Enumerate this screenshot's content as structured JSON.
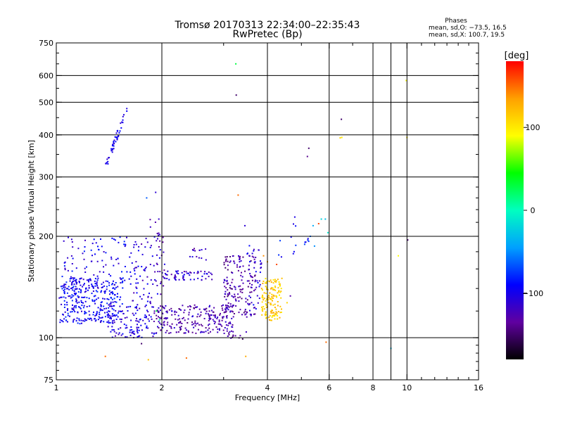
{
  "chart_data": {
    "type": "scatter",
    "title": "Tromsø 20170313 22:34:00–22:35:43",
    "subtitle": "RwPretec (Bp)",
    "xlabel": "Frequency [MHz]",
    "ylabel": "Stationary phase Virtual Height [km]",
    "x_scale": "log",
    "y_scale": "log",
    "xlim": [
      1,
      16
    ],
    "ylim": [
      75,
      750
    ],
    "x_ticks": [
      1,
      2,
      4,
      6,
      8,
      10,
      16
    ],
    "x_minor_gridlines": [
      9
    ],
    "y_ticks": [
      75,
      100,
      200,
      300,
      400,
      500,
      600,
      750
    ],
    "grid": true,
    "stats": {
      "heading": "Phases",
      "line_o": "mean, sd,O: −73.5, 16.5",
      "line_x": "mean, sd,X: 100.7, 19.5"
    },
    "colorbar": {
      "label": "[deg]",
      "range": [
        -180,
        180
      ],
      "ticks": [
        100,
        0,
        -100
      ],
      "colors": [
        "#000000",
        "#6000a0",
        "#0000ff",
        "#00a0ff",
        "#00ffc0",
        "#00ff00",
        "#ffff00",
        "#ffa000",
        "#ff0000"
      ]
    },
    "clusters": [
      {
        "x": [
          1.02,
          1.55
        ],
        "y": [
          110,
          150
        ],
        "n": 320,
        "phase": -95
      },
      {
        "x": [
          1.05,
          1.7
        ],
        "y": [
          140,
          200
        ],
        "n": 120,
        "phase": -100
      },
      {
        "x": [
          1.4,
          1.9
        ],
        "y": [
          100,
          125
        ],
        "n": 110,
        "phase": -105
      },
      {
        "x": [
          1.65,
          1.95
        ],
        "y": [
          120,
          200
        ],
        "n": 60,
        "phase": -110
      },
      {
        "x": [
          1.9,
          3.2
        ],
        "y": [
          103,
          125
        ],
        "n": 240,
        "phase": -125
      },
      {
        "x": [
          2.0,
          2.8
        ],
        "y": [
          148,
          158
        ],
        "n": 60,
        "phase": -115
      },
      {
        "x": [
          3.0,
          3.7
        ],
        "y": [
          115,
          175
        ],
        "n": 160,
        "phase": -130
      },
      {
        "x": [
          3.5,
          3.85
        ],
        "y": [
          120,
          190
        ],
        "n": 40,
        "phase": -105
      },
      {
        "x": [
          3.85,
          4.4
        ],
        "y": [
          112,
          150
        ],
        "n": 140,
        "phase": 115
      },
      {
        "x": [
          1.95,
          2.05
        ],
        "y": [
          105,
          210
        ],
        "n": 24,
        "phase": -120
      },
      {
        "x": [
          1.85,
          1.98
        ],
        "y": [
          140,
          230
        ],
        "n": 16,
        "phase": -115
      },
      {
        "x": [
          2.4,
          2.75
        ],
        "y": [
          170,
          185
        ],
        "n": 14,
        "phase": -120
      },
      {
        "x": [
          3.05,
          3.4
        ],
        "y": [
          99,
          103
        ],
        "n": 10,
        "phase": -140
      },
      {
        "x": [
          4.3,
          5.3
        ],
        "y": [
          165,
          235
        ],
        "n": 16,
        "phase": -85
      }
    ],
    "arc": {
      "x": [
        1.38,
        1.6
      ],
      "y": [
        320,
        485
      ],
      "n": 50,
      "phase": -100
    },
    "points": [
      {
        "x": 1.04,
        "y": 152,
        "phase": -80
      },
      {
        "x": 1.05,
        "y": 132,
        "phase": -75
      },
      {
        "x": 1.08,
        "y": 118,
        "phase": -70
      },
      {
        "x": 1.12,
        "y": 142,
        "phase": -65
      },
      {
        "x": 1.38,
        "y": 88,
        "phase": 150
      },
      {
        "x": 1.75,
        "y": 96,
        "phase": -150
      },
      {
        "x": 1.83,
        "y": 86,
        "phase": 120
      },
      {
        "x": 2.35,
        "y": 87,
        "phase": 150
      },
      {
        "x": 3.25,
        "y": 650,
        "phase": 30
      },
      {
        "x": 3.26,
        "y": 525,
        "phase": -150
      },
      {
        "x": 3.3,
        "y": 265,
        "phase": 150
      },
      {
        "x": 3.47,
        "y": 88,
        "phase": 130
      },
      {
        "x": 3.48,
        "y": 104,
        "phase": -120
      },
      {
        "x": 1.92,
        "y": 270,
        "phase": -110
      },
      {
        "x": 1.81,
        "y": 260,
        "phase": -65
      },
      {
        "x": 1.93,
        "y": 120,
        "phase": 35
      },
      {
        "x": 1.97,
        "y": 113,
        "phase": 10
      },
      {
        "x": 3.45,
        "y": 215,
        "phase": -110
      },
      {
        "x": 5.25,
        "y": 365,
        "phase": -150
      },
      {
        "x": 5.2,
        "y": 345,
        "phase": -140
      },
      {
        "x": 5.7,
        "y": 225,
        "phase": -20
      },
      {
        "x": 5.85,
        "y": 225,
        "phase": -30
      },
      {
        "x": 5.4,
        "y": 215,
        "phase": -40
      },
      {
        "x": 5.6,
        "y": 218,
        "phase": 160
      },
      {
        "x": 5.3,
        "y": 200,
        "phase": -60
      },
      {
        "x": 5.45,
        "y": 187,
        "phase": -50
      },
      {
        "x": 5.95,
        "y": 205,
        "phase": -10
      },
      {
        "x": 4.55,
        "y": 127,
        "phase": 110
      },
      {
        "x": 4.65,
        "y": 133,
        "phase": -130
      },
      {
        "x": 5.88,
        "y": 97,
        "phase": 150
      },
      {
        "x": 6.5,
        "y": 445,
        "phase": -150
      },
      {
        "x": 6.52,
        "y": 393,
        "phase": 100
      },
      {
        "x": 6.45,
        "y": 392,
        "phase": 110
      },
      {
        "x": 9.0,
        "y": 93,
        "phase": -30
      },
      {
        "x": 9.45,
        "y": 175,
        "phase": 90
      },
      {
        "x": 9.95,
        "y": 580,
        "phase": 90
      },
      {
        "x": 10.0,
        "y": 393,
        "phase": 100
      },
      {
        "x": 10.05,
        "y": 195,
        "phase": -150
      },
      {
        "x": 4.0,
        "y": 168,
        "phase": 130
      },
      {
        "x": 4.25,
        "y": 165,
        "phase": 160
      },
      {
        "x": 4.4,
        "y": 150,
        "phase": 120
      },
      {
        "x": 3.9,
        "y": 175,
        "phase": 140
      }
    ]
  }
}
